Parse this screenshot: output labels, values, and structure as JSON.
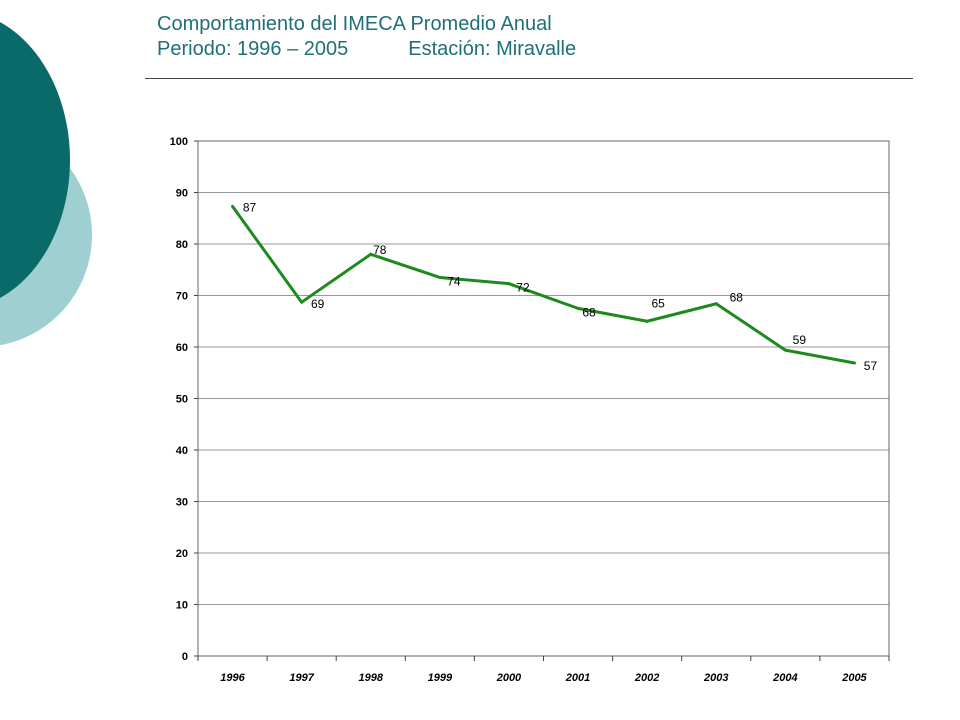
{
  "slide": {
    "title_line1": "Comportamiento del IMECA Promedio Anual",
    "title_period": "Periodo: 1996 – 2005",
    "title_station": "Estación: Miravalle"
  },
  "colors": {
    "title": "#1f6f78",
    "dark_teal": "#0a6a6a",
    "light_teal": "#9fcfd0",
    "line": "#1e8a1e",
    "grid": "#999999"
  },
  "chart_data": {
    "type": "line",
    "title": "",
    "xlabel": "",
    "ylabel": "",
    "categories": [
      "1996",
      "1997",
      "1998",
      "1999",
      "2000",
      "2001",
      "2002",
      "2003",
      "2004",
      "2005"
    ],
    "series": [
      {
        "name": "IMECA Promedio Anual",
        "values": [
          87.3,
          68.7,
          78,
          73.5,
          72.3,
          67.5,
          65,
          68.4,
          59.4,
          56.9
        ],
        "data_labels": [
          "87",
          "69",
          "78",
          "74",
          "72",
          "68",
          "65",
          "68",
          "59",
          "57"
        ]
      }
    ],
    "ylim": [
      0,
      100
    ],
    "yticks": [
      "0",
      "10",
      "20",
      "30",
      "40",
      "50",
      "60",
      "70",
      "80",
      "90",
      "100"
    ],
    "grid": true,
    "legend": "none"
  }
}
